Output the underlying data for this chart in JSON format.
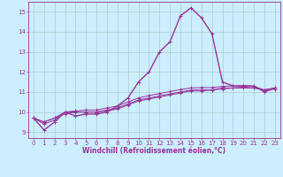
{
  "background_color": "#cceeff",
  "grid_color": "#aacccc",
  "line_color": "#993399",
  "xlim": [
    -0.5,
    23.5
  ],
  "ylim": [
    8.7,
    15.5
  ],
  "yticks": [
    9,
    10,
    11,
    12,
    13,
    14,
    15
  ],
  "xticks": [
    0,
    1,
    2,
    3,
    4,
    5,
    6,
    7,
    8,
    9,
    10,
    11,
    12,
    13,
    14,
    15,
    16,
    17,
    18,
    19,
    20,
    21,
    22,
    23
  ],
  "xlabel": "Windchill (Refroidissement éolien,°C)",
  "series": [
    [
      9.7,
      9.1,
      9.5,
      10.0,
      9.8,
      9.9,
      9.9,
      10.0,
      10.3,
      10.7,
      11.5,
      12.0,
      13.0,
      13.5,
      14.8,
      15.2,
      14.7,
      13.9,
      11.5,
      11.3,
      11.3,
      11.3,
      11.0,
      11.2
    ],
    [
      9.7,
      9.4,
      9.6,
      10.0,
      10.0,
      10.0,
      10.0,
      10.05,
      10.15,
      10.35,
      10.55,
      10.65,
      10.75,
      10.85,
      10.95,
      11.05,
      11.05,
      11.1,
      11.15,
      11.2,
      11.25,
      11.2,
      11.1,
      11.15
    ],
    [
      9.7,
      9.5,
      9.7,
      10.0,
      10.05,
      10.1,
      10.1,
      10.2,
      10.3,
      10.5,
      10.7,
      10.82,
      10.92,
      11.02,
      11.12,
      11.2,
      11.22,
      11.22,
      11.28,
      11.3,
      11.32,
      11.28,
      11.1,
      11.2
    ],
    [
      9.7,
      9.5,
      9.7,
      9.9,
      10.0,
      10.0,
      10.0,
      10.1,
      10.2,
      10.4,
      10.6,
      10.7,
      10.8,
      10.9,
      11.0,
      11.1,
      11.1,
      11.1,
      11.2,
      11.2,
      11.2,
      11.2,
      11.1,
      11.2
    ]
  ],
  "axis_fontsize": 5.5,
  "tick_fontsize": 5.0
}
